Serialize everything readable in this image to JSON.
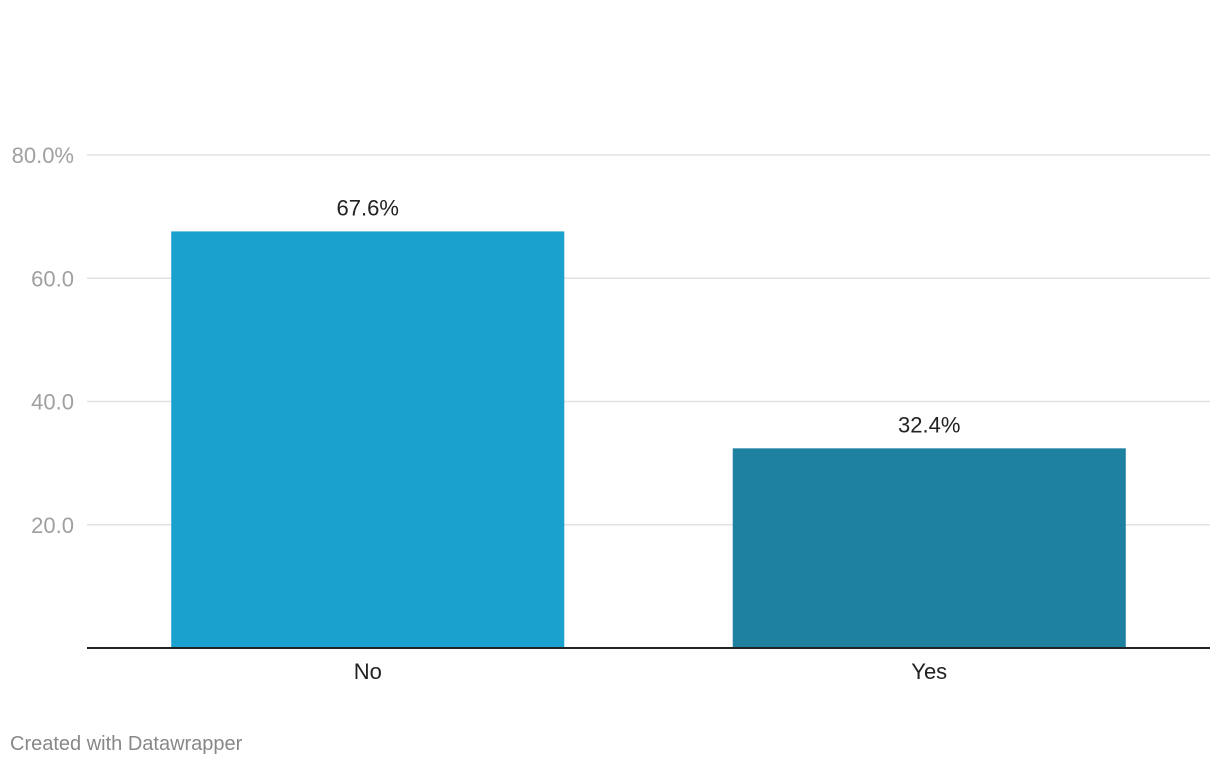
{
  "chart_data": {
    "type": "bar",
    "title": "",
    "xlabel": "",
    "ylabel": "",
    "categories": [
      "No",
      "Yes"
    ],
    "values": [
      67.6,
      32.4
    ],
    "value_labels": [
      "67.6%",
      "32.4%"
    ],
    "bar_colors": [
      "#1aa1cd",
      "#1e81a0"
    ],
    "ylim": [
      0,
      80
    ],
    "yticks": [
      20,
      40,
      60,
      80
    ],
    "ytick_labels": [
      "20.0",
      "40.0",
      "60.0",
      "80.0%"
    ],
    "grid": true
  },
  "footer": {
    "credit": "Created with Datawrapper"
  },
  "colors": {
    "gridline": "#e2e2e2",
    "baseline": "#222222",
    "tick_text": "#a0a0a0",
    "label_text": "#222222"
  }
}
